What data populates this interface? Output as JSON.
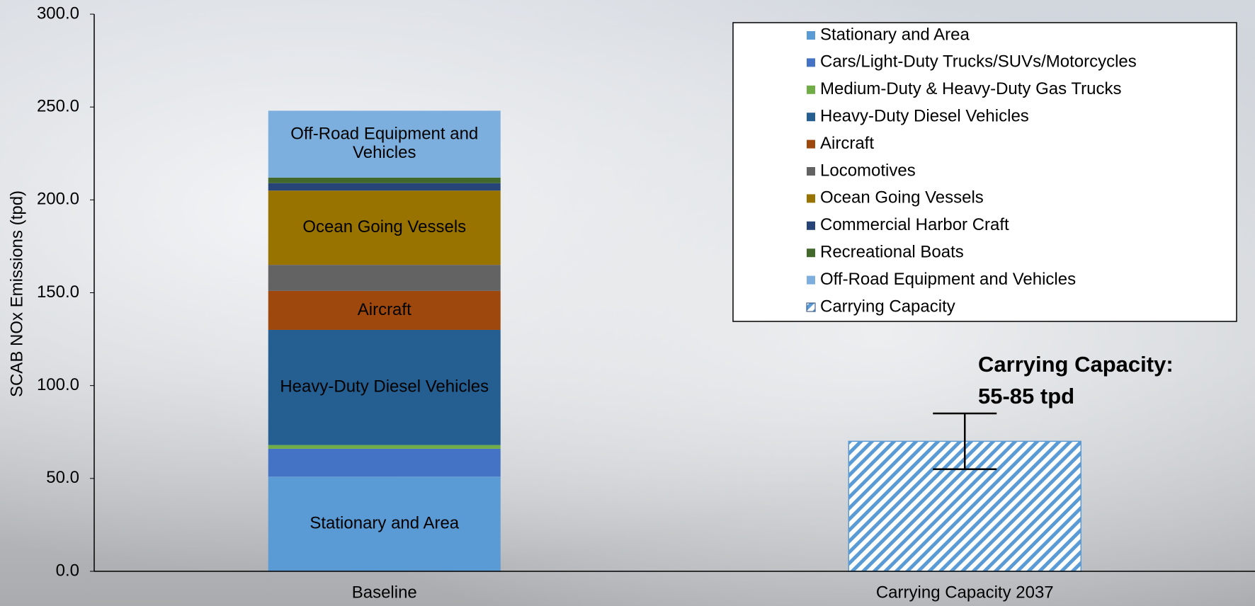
{
  "chart_data": {
    "type": "bar",
    "stacked": true,
    "y_label": "SCAB NOx Emissions (tpd)",
    "categories": [
      "Baseline",
      "Carrying Capacity 2037"
    ],
    "ylim": [
      0,
      300
    ],
    "yticks": [
      {
        "value": 0,
        "label": "0.0"
      },
      {
        "value": 50,
        "label": "50.0"
      },
      {
        "value": 100,
        "label": "100.0"
      },
      {
        "value": 150,
        "label": "150.0"
      },
      {
        "value": 200,
        "label": "200.0"
      },
      {
        "value": 250,
        "label": "250.0"
      },
      {
        "value": 300,
        "label": "300.0"
      }
    ],
    "legend": "top-right",
    "series": [
      {
        "name": "Stationary and Area",
        "color": "#5b9bd5",
        "values": [
          51,
          null
        ],
        "inside_label": true
      },
      {
        "name": "Cars/Light-Duty Trucks/SUVs/Motorcycles",
        "color": "#4472c4",
        "values": [
          15,
          null
        ]
      },
      {
        "name": "Medium-Duty & Heavy-Duty Gas Trucks",
        "color": "#70ad47",
        "values": [
          2,
          null
        ]
      },
      {
        "name": "Heavy-Duty Diesel Vehicles",
        "color": "#255e91",
        "values": [
          62,
          null
        ],
        "inside_label": true
      },
      {
        "name": "Aircraft",
        "color": "#9e480e",
        "values": [
          21,
          null
        ],
        "inside_label": true
      },
      {
        "name": "Locomotives",
        "color": "#636363",
        "values": [
          14,
          null
        ]
      },
      {
        "name": "Ocean Going Vessels",
        "color": "#997300",
        "values": [
          40,
          null
        ],
        "inside_label": true
      },
      {
        "name": "Commercial Harbor Craft",
        "color": "#264478",
        "values": [
          4,
          null
        ]
      },
      {
        "name": "Recreational Boats",
        "color": "#43682b",
        "values": [
          3,
          null
        ]
      },
      {
        "name": "Off-Road Equipment and Vehicles",
        "color": "#7cafdd",
        "values": [
          36,
          null
        ],
        "inside_label": true
      },
      {
        "name": "Carrying Capacity",
        "color": "#5b9bd5",
        "hatched": true,
        "values": [
          null,
          70
        ],
        "errors": [
          null,
          15
        ]
      }
    ],
    "annotation": [
      "Carrying Capacity:",
      "55-85 tpd"
    ]
  }
}
